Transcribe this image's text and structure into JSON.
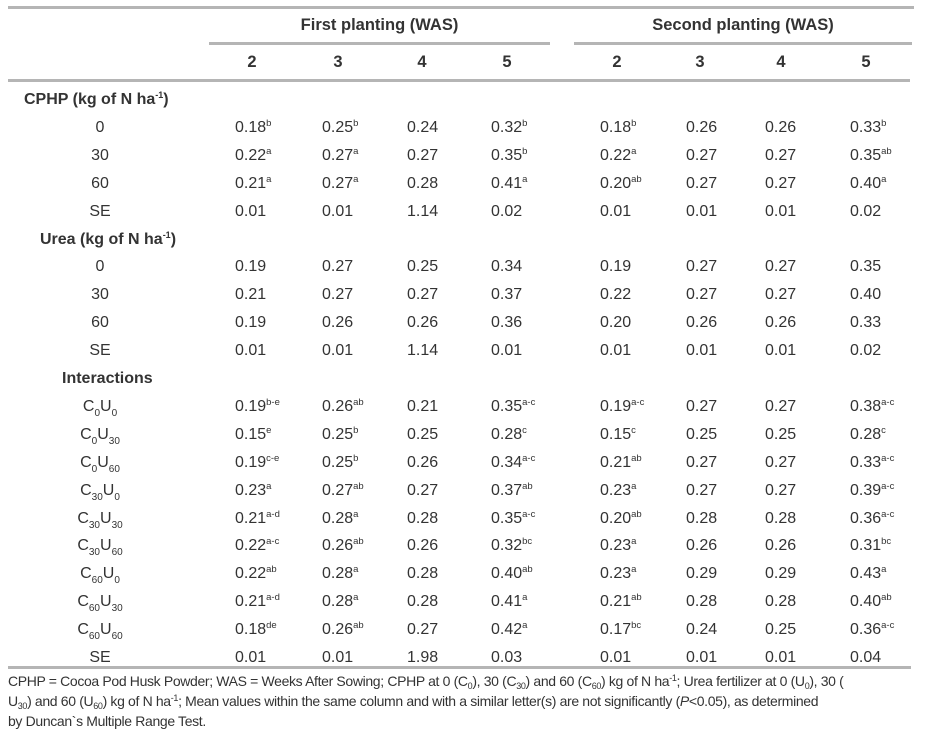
{
  "table": {
    "group_headers": [
      "First planting (WAS)",
      "Second planting (WAS)"
    ],
    "week_headers": [
      "2",
      "3",
      "4",
      "5",
      "2",
      "3",
      "4",
      "5"
    ],
    "sections": [
      {
        "title": "CPHP (kg of N ha",
        "title_sup": "-1",
        "title_end": ")",
        "rows": [
          {
            "label": "0",
            "cells": [
              [
                "0.18",
                "b"
              ],
              [
                "0.25",
                "b"
              ],
              [
                "0.24",
                ""
              ],
              [
                "0.32",
                "b"
              ],
              [
                "0.18",
                "b"
              ],
              [
                "0.26",
                ""
              ],
              [
                "0.26",
                ""
              ],
              [
                "0.33",
                "b"
              ]
            ]
          },
          {
            "label": "30",
            "cells": [
              [
                "0.22",
                "a"
              ],
              [
                "0.27",
                "a"
              ],
              [
                "0.27",
                ""
              ],
              [
                "0.35",
                "b"
              ],
              [
                "0.22",
                "a"
              ],
              [
                "0.27",
                ""
              ],
              [
                "0.27",
                ""
              ],
              [
                "0.35",
                "ab"
              ]
            ]
          },
          {
            "label": "60",
            "cells": [
              [
                "0.21",
                "a"
              ],
              [
                "0.27",
                "a"
              ],
              [
                "0.28",
                ""
              ],
              [
                "0.41",
                "a"
              ],
              [
                "0.20",
                "ab"
              ],
              [
                "0.27",
                ""
              ],
              [
                "0.27",
                ""
              ],
              [
                "0.40",
                "a"
              ]
            ]
          },
          {
            "label": "SE",
            "cells": [
              [
                "0.01",
                ""
              ],
              [
                "0.01",
                ""
              ],
              [
                "1.14",
                ""
              ],
              [
                "0.02",
                ""
              ],
              [
                "0.01",
                ""
              ],
              [
                "0.01",
                ""
              ],
              [
                "0.01",
                ""
              ],
              [
                "0.02",
                ""
              ]
            ]
          }
        ]
      },
      {
        "title": "Urea (kg of N ha",
        "title_sup": "-1",
        "title_end": ")",
        "rows": [
          {
            "label": "0",
            "cells": [
              [
                "0.19",
                ""
              ],
              [
                "0.27",
                ""
              ],
              [
                "0.25",
                ""
              ],
              [
                "0.34",
                ""
              ],
              [
                "0.19",
                ""
              ],
              [
                "0.27",
                ""
              ],
              [
                "0.27",
                ""
              ],
              [
                "0.35",
                ""
              ]
            ]
          },
          {
            "label": "30",
            "cells": [
              [
                "0.21",
                ""
              ],
              [
                "0.27",
                ""
              ],
              [
                "0.27",
                ""
              ],
              [
                "0.37",
                ""
              ],
              [
                "0.22",
                ""
              ],
              [
                "0.27",
                ""
              ],
              [
                "0.27",
                ""
              ],
              [
                "0.40",
                ""
              ]
            ]
          },
          {
            "label": "60",
            "cells": [
              [
                "0.19",
                ""
              ],
              [
                "0.26",
                ""
              ],
              [
                "0.26",
                ""
              ],
              [
                "0.36",
                ""
              ],
              [
                "0.20",
                ""
              ],
              [
                "0.26",
                ""
              ],
              [
                "0.26",
                ""
              ],
              [
                "0.33",
                ""
              ]
            ]
          },
          {
            "label": "SE",
            "cells": [
              [
                "0.01",
                ""
              ],
              [
                "0.01",
                ""
              ],
              [
                "1.14",
                ""
              ],
              [
                "0.01",
                ""
              ],
              [
                "0.01",
                ""
              ],
              [
                "0.01",
                ""
              ],
              [
                "0.01",
                ""
              ],
              [
                "0.02",
                ""
              ]
            ]
          }
        ]
      },
      {
        "title": "Interactions",
        "title_sup": "",
        "title_end": "",
        "rows": [
          {
            "label_c": "C",
            "label_c_sub": "0",
            "label_u": "U",
            "label_u_sub": "0",
            "cells": [
              [
                "0.19",
                "b-e"
              ],
              [
                "0.26",
                "ab"
              ],
              [
                "0.21",
                ""
              ],
              [
                "0.35",
                "a-c"
              ],
              [
                "0.19",
                "a-c"
              ],
              [
                "0.27",
                ""
              ],
              [
                "0.27",
                ""
              ],
              [
                "0.38",
                "a-c"
              ]
            ]
          },
          {
            "label_c": "C",
            "label_c_sub": "0",
            "label_u": "U",
            "label_u_sub": "30",
            "cells": [
              [
                "0.15",
                "e"
              ],
              [
                "0.25",
                "b"
              ],
              [
                "0.25",
                ""
              ],
              [
                "0.28",
                "c"
              ],
              [
                "0.15",
                "c"
              ],
              [
                "0.25",
                ""
              ],
              [
                "0.25",
                ""
              ],
              [
                "0.28",
                "c"
              ]
            ]
          },
          {
            "label_c": "C",
            "label_c_sub": "0",
            "label_u": "U",
            "label_u_sub": "60",
            "cells": [
              [
                "0.19",
                "c-e"
              ],
              [
                "0.25",
                "b"
              ],
              [
                "0.26",
                ""
              ],
              [
                "0.34",
                "a-c"
              ],
              [
                "0.21",
                "ab"
              ],
              [
                "0.27",
                ""
              ],
              [
                "0.27",
                ""
              ],
              [
                "0.33",
                "a-c"
              ]
            ]
          },
          {
            "label_c": "C",
            "label_c_sub": "30",
            "label_u": "U",
            "label_u_sub": "0",
            "cells": [
              [
                "0.23",
                "a"
              ],
              [
                "0.27",
                "ab"
              ],
              [
                "0.27",
                ""
              ],
              [
                "0.37",
                "ab"
              ],
              [
                "0.23",
                "a"
              ],
              [
                "0.27",
                ""
              ],
              [
                "0.27",
                ""
              ],
              [
                "0.39",
                "a-c"
              ]
            ]
          },
          {
            "label_c": "C",
            "label_c_sub": "30",
            "label_u": "U",
            "label_u_sub": "30",
            "cells": [
              [
                "0.21",
                "a-d"
              ],
              [
                "0.28",
                "a"
              ],
              [
                "0.28",
                ""
              ],
              [
                "0.35",
                "a-c"
              ],
              [
                "0.20",
                "ab"
              ],
              [
                "0.28",
                ""
              ],
              [
                "0.28",
                ""
              ],
              [
                "0.36",
                "a-c"
              ]
            ]
          },
          {
            "label_c": "C",
            "label_c_sub": "30",
            "label_u": "U",
            "label_u_sub": "60",
            "cells": [
              [
                "0.22",
                "a-c"
              ],
              [
                "0.26",
                "ab"
              ],
              [
                "0.26",
                ""
              ],
              [
                "0.32",
                "bc"
              ],
              [
                "0.23",
                "a"
              ],
              [
                "0.26",
                ""
              ],
              [
                "0.26",
                ""
              ],
              [
                "0.31",
                "bc"
              ]
            ]
          },
          {
            "label_c": "C",
            "label_c_sub": "60",
            "label_u": "U",
            "label_u_sub": "0",
            "cells": [
              [
                "0.22",
                "ab"
              ],
              [
                "0.28",
                "a"
              ],
              [
                "0.28",
                ""
              ],
              [
                "0.40",
                "ab"
              ],
              [
                "0.23",
                "a"
              ],
              [
                "0.29",
                ""
              ],
              [
                "0.29",
                ""
              ],
              [
                "0.43",
                "a"
              ]
            ]
          },
          {
            "label_c": "C",
            "label_c_sub": "60",
            "label_u": "U",
            "label_u_sub": "30",
            "cells": [
              [
                "0.21",
                "a-d"
              ],
              [
                "0.28",
                "a"
              ],
              [
                "0.28",
                ""
              ],
              [
                "0.41",
                "a"
              ],
              [
                "0.21",
                "ab"
              ],
              [
                "0.28",
                ""
              ],
              [
                "0.28",
                ""
              ],
              [
                "0.40",
                "ab"
              ]
            ]
          },
          {
            "label_c": "C",
            "label_c_sub": "60",
            "label_u": "U",
            "label_u_sub": "60",
            "cells": [
              [
                "0.18",
                "de"
              ],
              [
                "0.26",
                "ab"
              ],
              [
                "0.27",
                ""
              ],
              [
                "0.42",
                "a"
              ],
              [
                "0.17",
                "bc"
              ],
              [
                "0.24",
                ""
              ],
              [
                "0.25",
                ""
              ],
              [
                "0.36",
                "a-c"
              ]
            ]
          },
          {
            "label": "SE",
            "cells": [
              [
                "0.01",
                ""
              ],
              [
                "0.01",
                ""
              ],
              [
                "1.98",
                ""
              ],
              [
                "0.03",
                ""
              ],
              [
                "0.01",
                ""
              ],
              [
                "0.01",
                ""
              ],
              [
                "0.01",
                ""
              ],
              [
                "0.04",
                ""
              ]
            ]
          }
        ]
      }
    ]
  },
  "footnote": {
    "parts": [
      [
        "t",
        "CPHP = Cocoa Pod Husk Powder; WAS = Weeks After Sowing; CPHP at 0 (C"
      ],
      [
        "sub",
        "0"
      ],
      [
        "t",
        "), 30 (C"
      ],
      [
        "sub",
        "30"
      ],
      [
        "t",
        ") and 60 (C"
      ],
      [
        "sub",
        "60"
      ],
      [
        "t",
        ") kg of N ha"
      ],
      [
        "sup",
        "-1"
      ],
      [
        "t",
        "; Urea fertilizer at 0 (U"
      ],
      [
        "sub",
        "0"
      ],
      [
        "t",
        "), 30 ("
      ],
      [
        "br",
        ""
      ],
      [
        "t",
        "U"
      ],
      [
        "sub",
        "30"
      ],
      [
        "t",
        ") and 60 (U"
      ],
      [
        "sub",
        "60"
      ],
      [
        "t",
        ") kg of N ha"
      ],
      [
        "sup",
        "-1"
      ],
      [
        "t",
        "; Mean values within the same column and with a similar letter(s) are not significantly ("
      ],
      [
        "i",
        "P"
      ],
      [
        "t",
        "<0.05), as determined"
      ],
      [
        "br",
        ""
      ],
      [
        "t",
        "by Duncan`s Multiple Range Test."
      ]
    ]
  },
  "colors": {
    "text": "#333333",
    "rule": "#b5b5b5"
  }
}
